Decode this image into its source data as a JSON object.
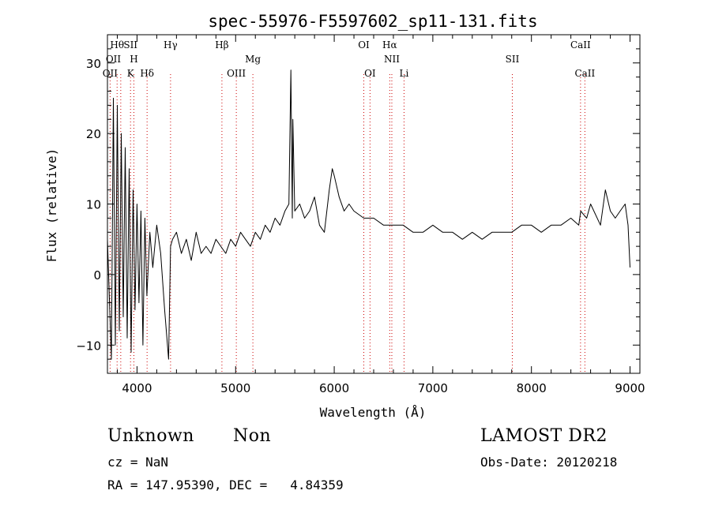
{
  "chart_data": {
    "type": "line",
    "title": "spec-55976-F5597602_sp11-131.fits",
    "xlabel": "Wavelength (Å)",
    "ylabel": "Flux (relative)",
    "xlim": [
      3700,
      9100
    ],
    "ylim": [
      -14,
      34
    ],
    "xticks": [
      4000,
      5000,
      6000,
      7000,
      8000,
      9000
    ],
    "yticks": [
      -10,
      0,
      10,
      20,
      30
    ],
    "xtick_labels": [
      "4000",
      "5000",
      "6000",
      "7000",
      "8000",
      "9000"
    ],
    "ytick_labels": [
      "−10",
      "0",
      "10",
      "20",
      "30"
    ],
    "grid": false,
    "series": [
      {
        "style": "solid black line",
        "x": [
          3700,
          3740,
          3760,
          3780,
          3800,
          3820,
          3840,
          3860,
          3880,
          3900,
          3920,
          3940,
          3960,
          3980,
          4000,
          4020,
          4040,
          4060,
          4080,
          4100,
          4130,
          4160,
          4200,
          4240,
          4280,
          4320,
          4340,
          4360,
          4400,
          4450,
          4500,
          4550,
          4600,
          4650,
          4700,
          4750,
          4800,
          4850,
          4900,
          4950,
          5000,
          5050,
          5100,
          5150,
          5200,
          5250,
          5300,
          5350,
          5400,
          5450,
          5500,
          5540,
          5560,
          5575,
          5580,
          5600,
          5650,
          5700,
          5750,
          5800,
          5850,
          5900,
          5950,
          5980,
          6000,
          6050,
          6100,
          6150,
          6200,
          6300,
          6400,
          6500,
          6600,
          6700,
          6800,
          6900,
          7000,
          7100,
          7200,
          7300,
          7400,
          7500,
          7600,
          7700,
          7800,
          7900,
          8000,
          8100,
          8200,
          8300,
          8400,
          8480,
          8500,
          8560,
          8600,
          8700,
          8750,
          8800,
          8850,
          8900,
          8950,
          8980,
          9000
        ],
        "y": [
          5,
          -12,
          25,
          -10,
          24,
          -8,
          20,
          -6,
          18,
          -9,
          15,
          -11,
          12,
          -5,
          10,
          -4,
          9,
          -10,
          8,
          -3,
          6,
          1,
          7,
          3,
          -5,
          -12,
          4,
          5,
          6,
          3,
          5,
          2,
          6,
          3,
          4,
          3,
          5,
          4,
          3,
          5,
          4,
          6,
          5,
          4,
          6,
          5,
          7,
          6,
          8,
          7,
          9,
          10,
          29,
          8,
          22,
          9,
          10,
          8,
          9,
          11,
          7,
          6,
          12,
          15,
          14,
          11,
          9,
          10,
          9,
          8,
          8,
          7,
          7,
          7,
          6,
          6,
          7,
          6,
          6,
          5,
          6,
          5,
          6,
          6,
          6,
          7,
          7,
          6,
          7,
          7,
          8,
          7,
          9,
          8,
          10,
          7,
          12,
          9,
          8,
          9,
          10,
          7,
          1
        ]
      }
    ],
    "line_labels_top": [
      {
        "x": 3798,
        "label": "Hθ"
      },
      {
        "x": 3934,
        "label": "SII"
      },
      {
        "x": 4340,
        "label": "Hγ"
      },
      {
        "x": 4861,
        "label": "Hβ"
      },
      {
        "x": 6300,
        "label": "OI"
      },
      {
        "x": 6563,
        "label": "Hα"
      },
      {
        "x": 8498,
        "label": "CaII"
      }
    ],
    "line_labels_mid": [
      {
        "x": 3760,
        "label": "OII"
      },
      {
        "x": 3968,
        "label": "H"
      },
      {
        "x": 5175,
        "label": "Mg"
      },
      {
        "x": 6584,
        "label": "NII"
      },
      {
        "x": 7806,
        "label": "SII"
      }
    ],
    "line_labels_low": [
      {
        "x": 3727,
        "label": "OII"
      },
      {
        "x": 3934,
        "label": "K"
      },
      {
        "x": 4102,
        "label": "Hδ"
      },
      {
        "x": 5007,
        "label": "OIII"
      },
      {
        "x": 6363,
        "label": "OI"
      },
      {
        "x": 6708,
        "label": "Li"
      },
      {
        "x": 8542,
        "label": "CaII"
      }
    ],
    "line_markers_x": [
      3727,
      3798,
      3835,
      3934,
      3968,
      4102,
      4340,
      4861,
      5007,
      5175,
      6300,
      6363,
      6563,
      6584,
      6708,
      7806,
      8498,
      8542
    ]
  },
  "info": {
    "object_class": "Unknown",
    "subclass": "Non",
    "survey": "LAMOST DR2",
    "cz": "cz = NaN",
    "obs_date": "Obs-Date: 20120218",
    "coords": "RA = 147.95390, DEC =   4.84359"
  }
}
